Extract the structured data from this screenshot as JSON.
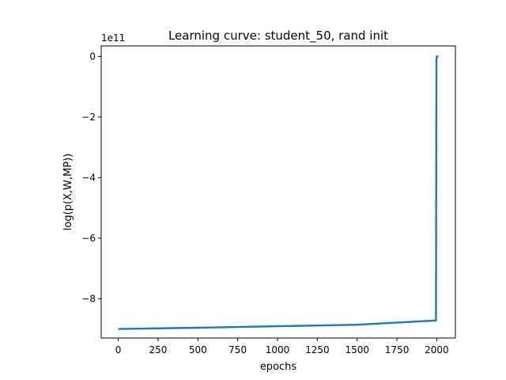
{
  "chart_data": {
    "type": "line",
    "title": "Learning curve: student_50, rand init",
    "xlabel": "epochs",
    "ylabel": "log(p(X,W,MP))",
    "y_offset_text": "1e11",
    "xlim": [
      -107,
      2117
    ],
    "ylim": [
      -9.3,
      0.35
    ],
    "x_ticks": [
      0,
      250,
      500,
      750,
      1000,
      1250,
      1500,
      1750,
      2000
    ],
    "y_ticks": [
      -8,
      -6,
      -4,
      -2,
      0
    ],
    "y_tick_labels": [
      "−8",
      "−6",
      "−4",
      "−2",
      "0"
    ],
    "grid": false,
    "series": [
      {
        "color": "#1f77b4",
        "x": [
          0,
          500,
          1000,
          1500,
          1995,
          1997,
          1998,
          2000,
          2005,
          2010
        ],
        "y": [
          -9.0,
          -8.96,
          -8.91,
          -8.86,
          -8.72,
          -3.0,
          -0.08,
          0.0,
          0.0,
          0.0
        ]
      }
    ]
  }
}
